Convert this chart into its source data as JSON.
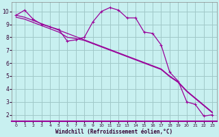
{
  "bg_color": "#c8f0f0",
  "grid_color": "#a0c8c8",
  "line_color": "#990099",
  "xlim": [
    -0.5,
    23.5
  ],
  "ylim": [
    1.5,
    10.7
  ],
  "xticks": [
    0,
    1,
    2,
    3,
    4,
    5,
    6,
    7,
    8,
    9,
    10,
    11,
    12,
    13,
    14,
    15,
    16,
    17,
    18,
    19,
    20,
    21,
    22,
    23
  ],
  "yticks": [
    2,
    3,
    4,
    5,
    6,
    7,
    8,
    9,
    10
  ],
  "xlabel": "Windchill (Refroidissement éolien,°C)",
  "s1_y": [
    9.7,
    10.1,
    9.4,
    9.0,
    8.8,
    8.6,
    7.7,
    7.8,
    8.0,
    9.2,
    10.0,
    10.3,
    10.1,
    9.5,
    9.5,
    8.4,
    8.3,
    7.4,
    5.3,
    4.6,
    3.0,
    2.8,
    1.9,
    2.0
  ],
  "s2_y": [
    9.7,
    9.55,
    9.3,
    9.05,
    8.8,
    8.55,
    8.3,
    8.05,
    7.8,
    7.55,
    7.3,
    7.05,
    6.8,
    6.55,
    6.3,
    6.05,
    5.8,
    5.55,
    5.0,
    4.55,
    3.85,
    3.3,
    2.75,
    2.2
  ],
  "s3_y": [
    9.55,
    9.4,
    9.15,
    8.9,
    8.65,
    8.4,
    8.0,
    7.9,
    7.75,
    7.5,
    7.25,
    7.0,
    6.75,
    6.5,
    6.25,
    6.0,
    5.75,
    5.5,
    4.95,
    4.5,
    3.8,
    3.25,
    2.7,
    2.15
  ]
}
